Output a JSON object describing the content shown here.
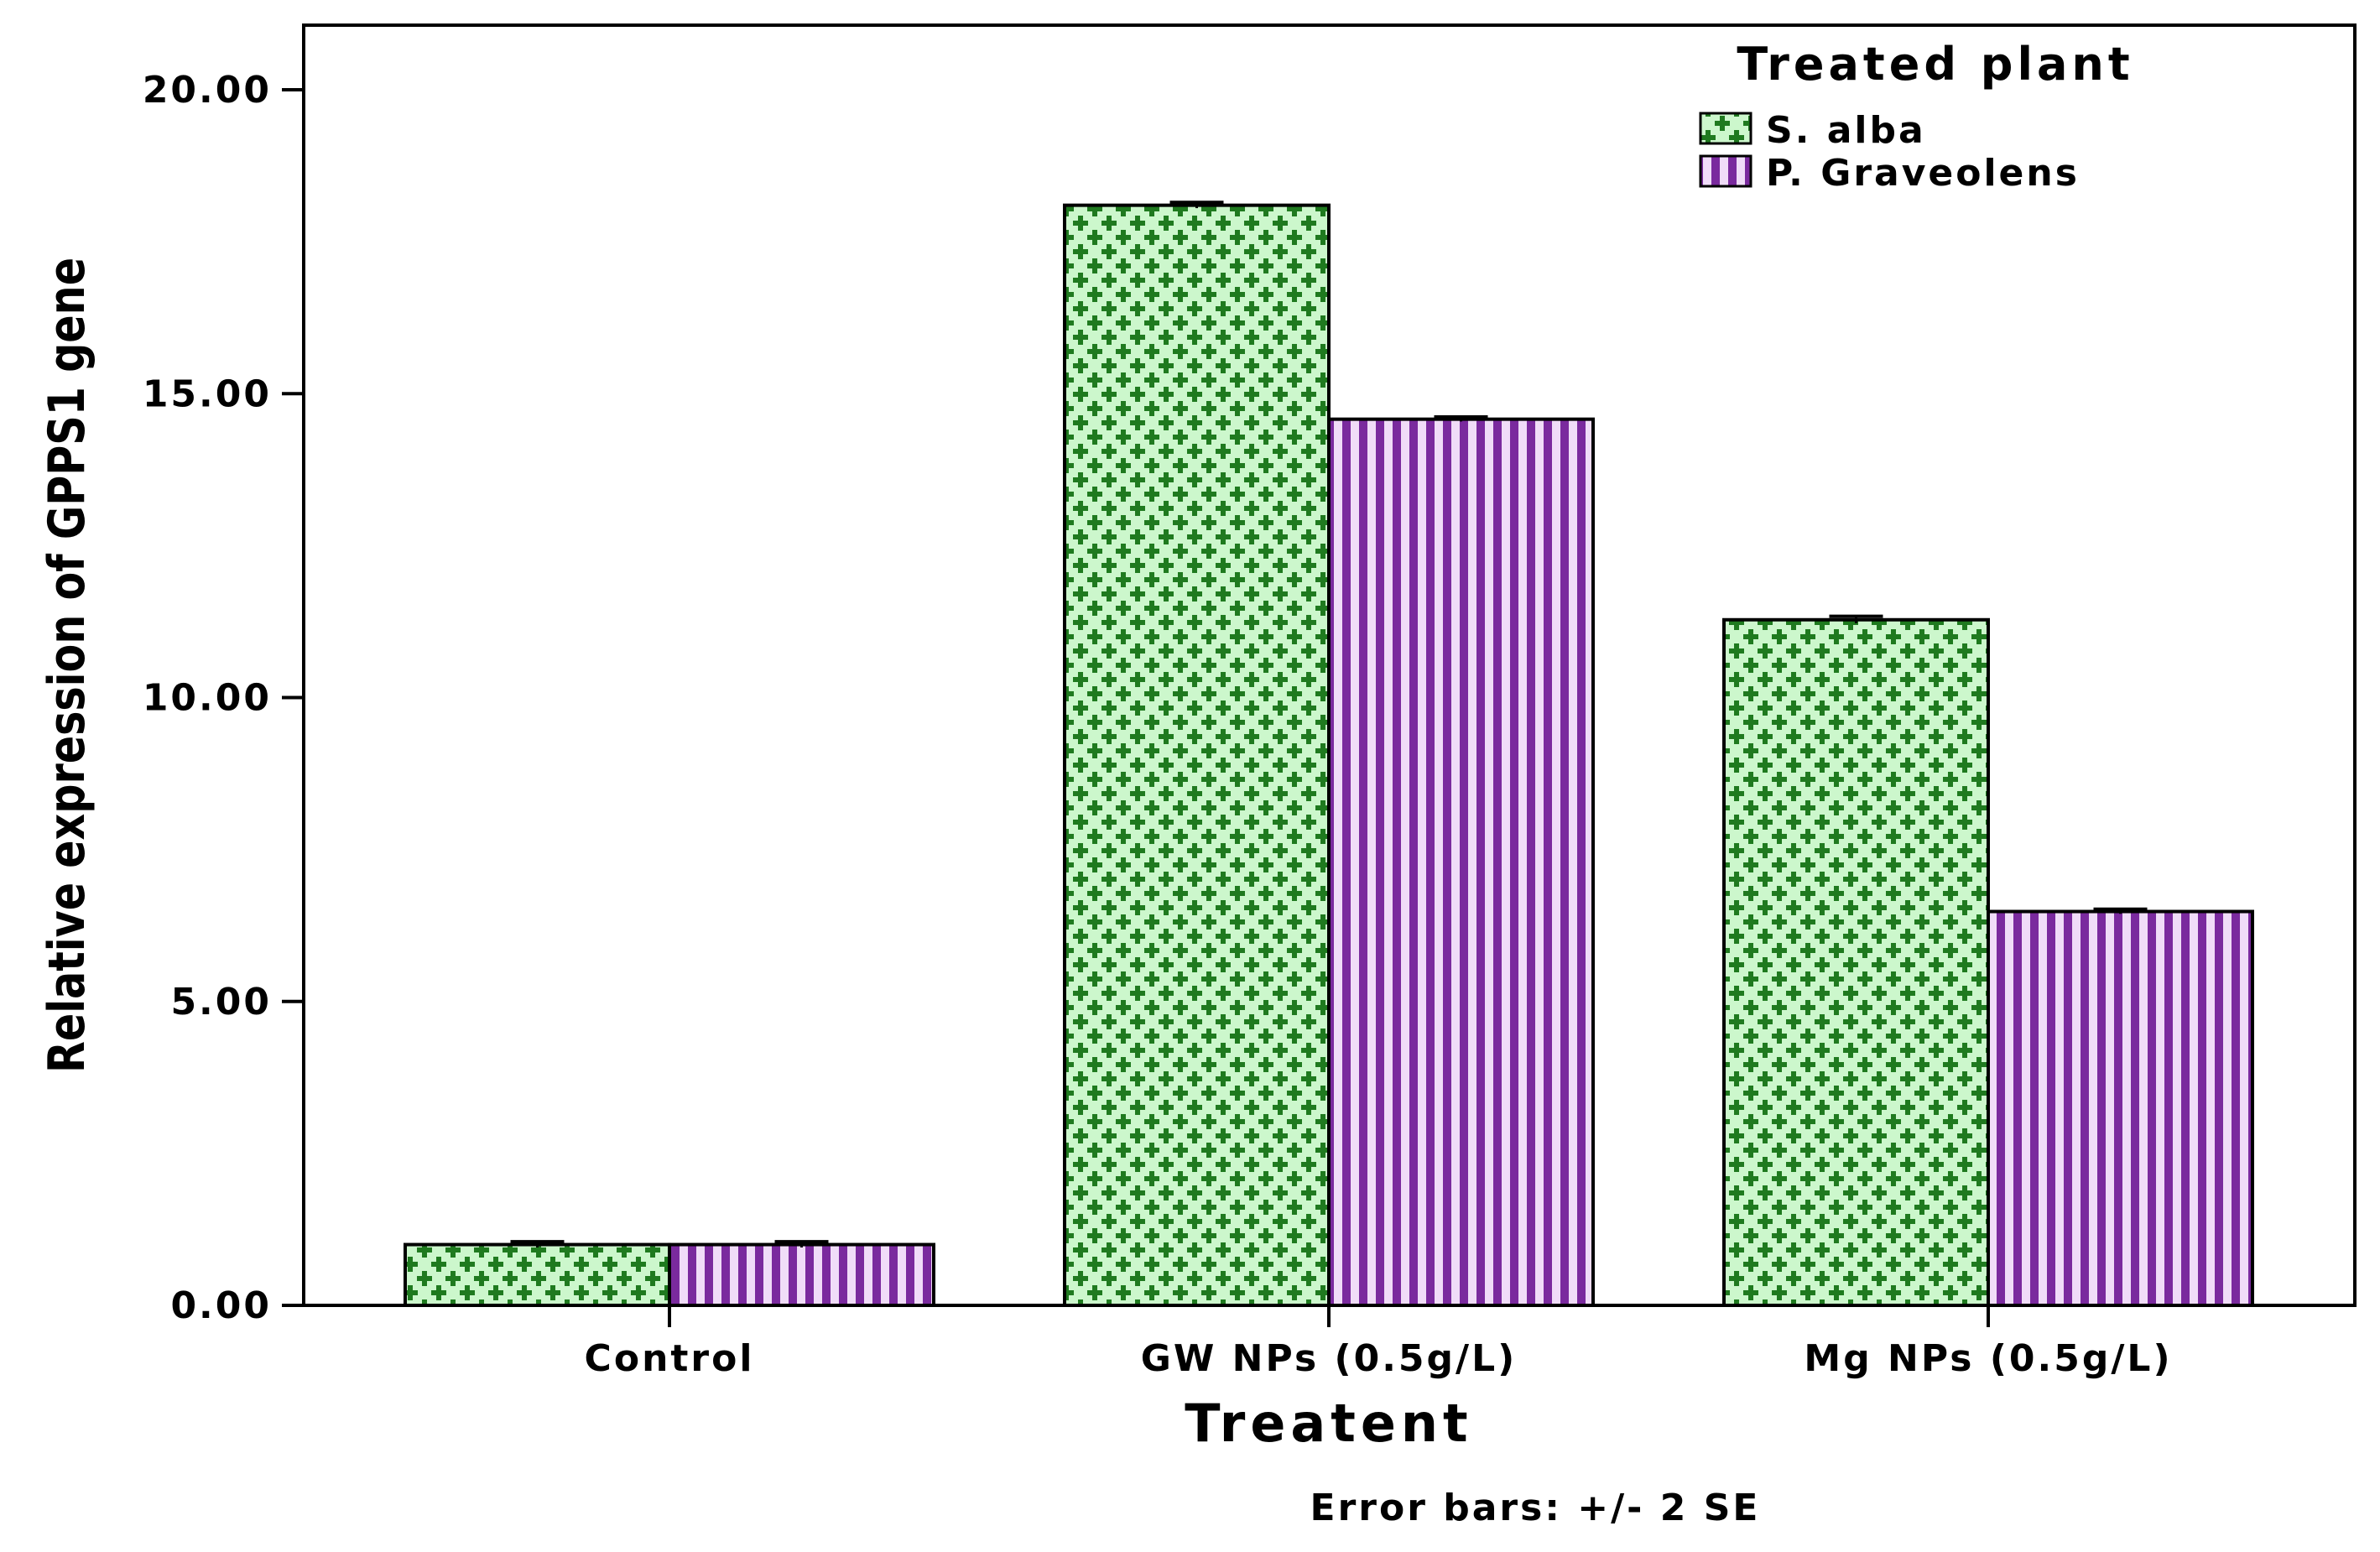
{
  "chart_data": {
    "type": "bar",
    "title": "",
    "xlabel": "Treatent",
    "ylabel": "Relative expression of GPPS1 gene",
    "categories": [
      "Control",
      "GW NPs (0.5g/L)",
      "Mg NPs (0.5g/L)"
    ],
    "series": [
      {
        "name": "S. alba",
        "values": [
          1.0,
          18.1,
          11.28
        ],
        "error": [
          0.02,
          0.02,
          0.03
        ],
        "color": "#1f7a1f",
        "fill": "#ccf7cc"
      },
      {
        "name": "P. Graveolens",
        "values": [
          1.0,
          14.58,
          6.48
        ],
        "error": [
          0.02,
          0.01,
          0.01
        ],
        "color": "#7a2a9e",
        "fill": "#f0dcf8"
      }
    ],
    "ylim": [
      0,
      20
    ],
    "yticks": [
      0,
      5,
      10,
      15,
      20
    ],
    "ytick_labels": [
      "0.00",
      "5.00",
      "10.00",
      "15.00",
      "20.00"
    ],
    "legend_title": "Treated plant",
    "legend_position": "top-right",
    "note": "Error bars: +/- 2 SE"
  }
}
